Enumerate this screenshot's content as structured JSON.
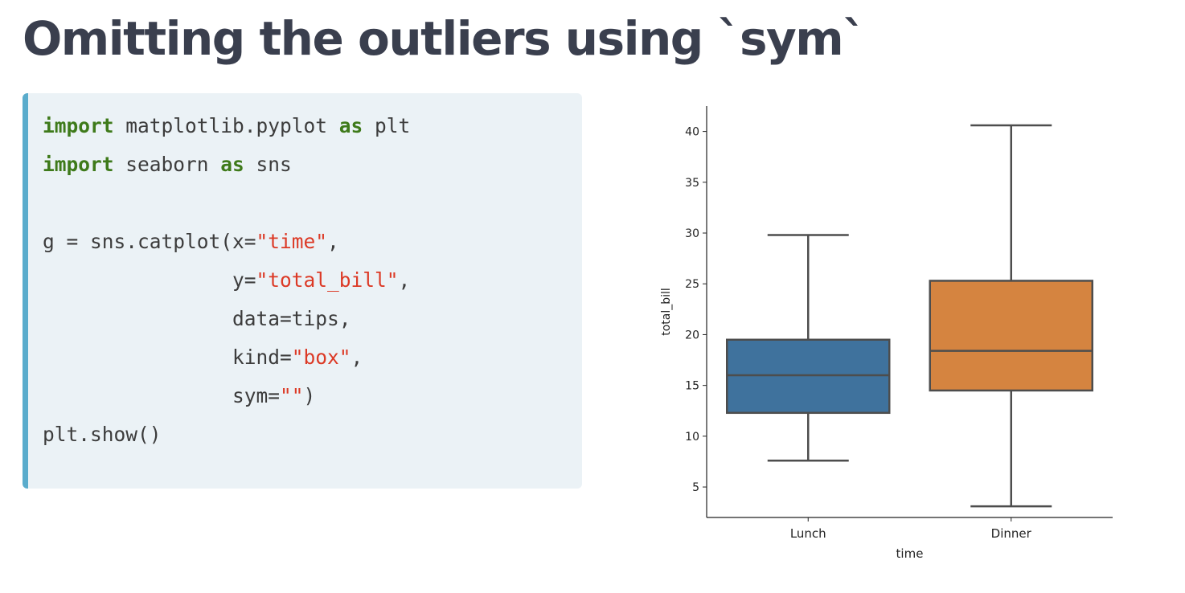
{
  "slide": {
    "title": "Omitting the outliers using `sym`"
  },
  "code": {
    "lines": [
      [
        {
          "t": "import",
          "c": "kw"
        },
        {
          "t": " matplotlib.pyplot ",
          "c": ""
        },
        {
          "t": "as",
          "c": "kw"
        },
        {
          "t": " plt",
          "c": ""
        }
      ],
      [
        {
          "t": "import",
          "c": "kw"
        },
        {
          "t": " seaborn ",
          "c": ""
        },
        {
          "t": "as",
          "c": "kw"
        },
        {
          "t": " sns",
          "c": ""
        }
      ],
      [],
      [
        {
          "t": "g = sns.catplot(x=",
          "c": ""
        },
        {
          "t": "\"time\"",
          "c": "str"
        },
        {
          "t": ",",
          "c": ""
        }
      ],
      [
        {
          "t": "                y=",
          "c": ""
        },
        {
          "t": "\"total_bill\"",
          "c": "str"
        },
        {
          "t": ",",
          "c": ""
        }
      ],
      [
        {
          "t": "                data=tips,",
          "c": ""
        }
      ],
      [
        {
          "t": "                kind=",
          "c": ""
        },
        {
          "t": "\"box\"",
          "c": "str"
        },
        {
          "t": ",",
          "c": ""
        }
      ],
      [
        {
          "t": "                sym=",
          "c": ""
        },
        {
          "t": "\"\"",
          "c": "str"
        },
        {
          "t": ")",
          "c": ""
        }
      ],
      [
        {
          "t": "plt.show()",
          "c": ""
        }
      ]
    ]
  },
  "chart_data": {
    "type": "box",
    "title": "",
    "xlabel": "time",
    "ylabel": "total_bill",
    "categories": [
      "Lunch",
      "Dinner"
    ],
    "yticks": [
      5,
      10,
      15,
      20,
      25,
      30,
      35,
      40
    ],
    "ylim": [
      2,
      42.5
    ],
    "grid": false,
    "boxes": [
      {
        "category": "Lunch",
        "whislo": 7.6,
        "q1": 12.3,
        "med": 16.0,
        "q3": 19.5,
        "whishi": 29.8,
        "color": "#3f729d"
      },
      {
        "category": "Dinner",
        "whislo": 3.1,
        "q1": 14.5,
        "med": 18.4,
        "q3": 25.3,
        "whishi": 40.6,
        "color": "#d58440"
      }
    ],
    "line_color": "#4d4d4d"
  }
}
